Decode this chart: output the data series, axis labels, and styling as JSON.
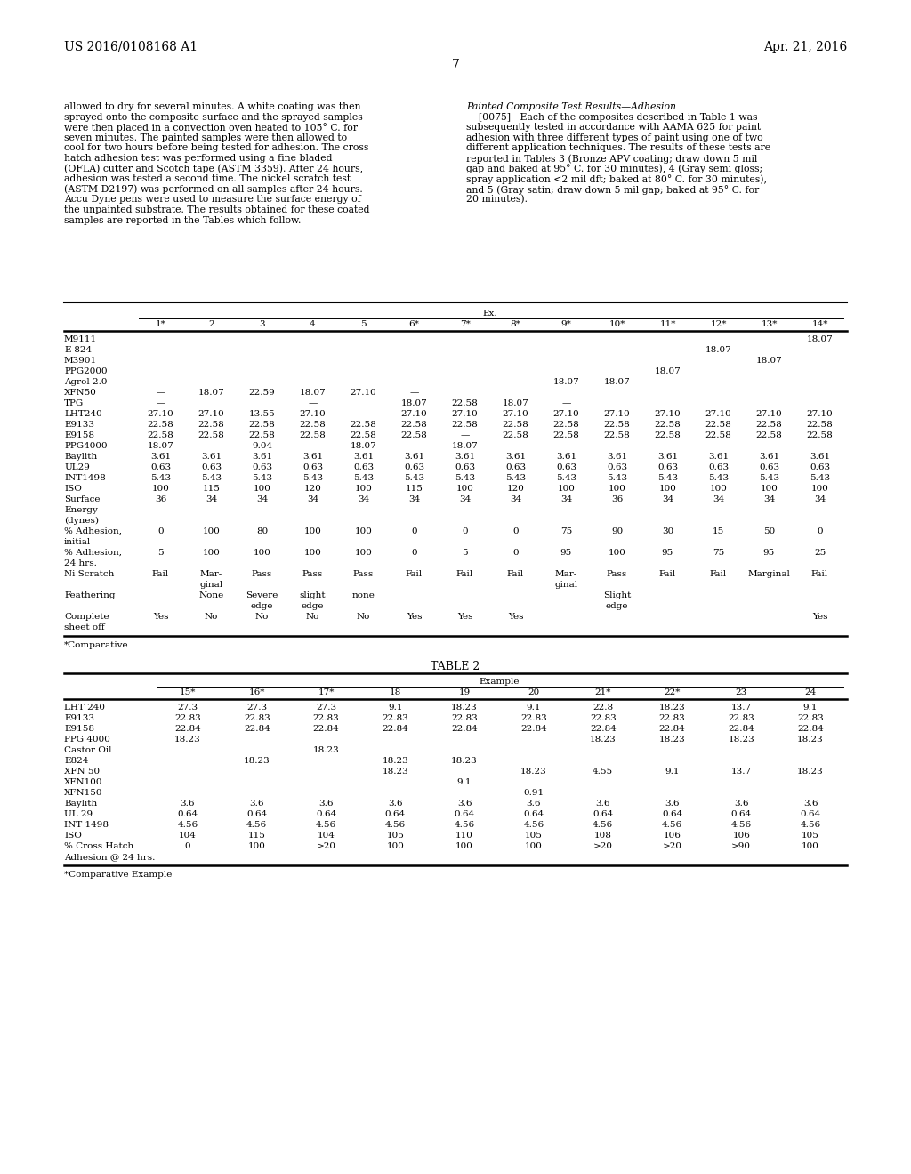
{
  "background_color": "#ffffff",
  "header_left": "US 2016/0108168 A1",
  "header_right": "Apr. 21, 2016",
  "page_number": "7",
  "left_para_lines": [
    "allowed to dry for several minutes. A white coating was then",
    "sprayed onto the composite surface and the sprayed samples",
    "were then placed in a convection oven heated to 105° C. for",
    "seven minutes. The painted samples were then allowed to",
    "cool for two hours before being tested for adhesion. The cross",
    "hatch adhesion test was performed using a fine bladed",
    "(OFLA) cutter and Scotch tape (ASTM 3359). After 24 hours,",
    "adhesion was tested a second time. The nickel scratch test",
    "(ASTM D2197) was performed on all samples after 24 hours.",
    "Accu Dyne pens were used to measure the surface energy of",
    "the unpainted substrate. The results obtained for these coated",
    "samples are reported in the Tables which follow."
  ],
  "right_heading": "Painted Composite Test Results—Adhesion",
  "right_para_lines": [
    "    [0075]   Each of the composites described in Table 1 was",
    "subsequently tested in accordance with AAMA 625 for paint",
    "adhesion with three different types of paint using one of two",
    "different application techniques. The results of these tests are",
    "reported in Tables 3 (Bronze APV coating; draw down 5 mil",
    "gap and baked at 95° C. for 30 minutes), 4 (Gray semi gloss;",
    "spray application <2 mil dft; baked at 80° C. for 30 minutes),",
    "and 5 (Gray satin; draw down 5 mil gap; baked at 95° C. for",
    "20 minutes)."
  ],
  "table1_columns": [
    "1*",
    "2",
    "3",
    "4",
    "5",
    "6*",
    "7*",
    "8*",
    "9*",
    "10*",
    "11*",
    "12*",
    "13*",
    "14*"
  ],
  "table1_rows": [
    [
      "M9111",
      "",
      "",
      "",
      "",
      "",
      "",
      "",
      "",
      "",
      "",
      "",
      "",
      "",
      "18.07"
    ],
    [
      "E-824",
      "",
      "",
      "",
      "",
      "",
      "",
      "",
      "",
      "",
      "",
      "",
      "18.07",
      "",
      ""
    ],
    [
      "M3901",
      "",
      "",
      "",
      "",
      "",
      "",
      "",
      "",
      "",
      "",
      "",
      "",
      "18.07",
      ""
    ],
    [
      "PPG2000",
      "",
      "",
      "",
      "",
      "",
      "",
      "",
      "",
      "",
      "",
      "18.07",
      "",
      "",
      ""
    ],
    [
      "Agrol 2.0",
      "",
      "",
      "",
      "",
      "",
      "",
      "",
      "",
      "18.07",
      "18.07",
      "",
      "",
      "",
      ""
    ],
    [
      "XFN50",
      "—",
      "18.07",
      "22.59",
      "18.07",
      "27.10",
      "—",
      "",
      "",
      "",
      "",
      "",
      "",
      "",
      ""
    ],
    [
      "TPG",
      "—",
      "",
      "",
      "—",
      "",
      "18.07",
      "22.58",
      "18.07",
      "—",
      "",
      "",
      "",
      "",
      ""
    ],
    [
      "LHT240",
      "27.10",
      "27.10",
      "13.55",
      "27.10",
      "—",
      "27.10",
      "27.10",
      "27.10",
      "27.10",
      "27.10",
      "27.10",
      "27.10",
      "27.10",
      "27.10"
    ],
    [
      "E9133",
      "22.58",
      "22.58",
      "22.58",
      "22.58",
      "22.58",
      "22.58",
      "22.58",
      "22.58",
      "22.58",
      "22.58",
      "22.58",
      "22.58",
      "22.58",
      "22.58"
    ],
    [
      "E9158",
      "22.58",
      "22.58",
      "22.58",
      "22.58",
      "22.58",
      "22.58",
      "—",
      "22.58",
      "22.58",
      "22.58",
      "22.58",
      "22.58",
      "22.58",
      "22.58"
    ],
    [
      "PPG4000",
      "18.07",
      "—",
      "9.04",
      "—",
      "18.07",
      "—",
      "18.07",
      "—",
      "",
      "",
      "",
      "",
      "",
      ""
    ],
    [
      "Baylith",
      "3.61",
      "3.61",
      "3.61",
      "3.61",
      "3.61",
      "3.61",
      "3.61",
      "3.61",
      "3.61",
      "3.61",
      "3.61",
      "3.61",
      "3.61",
      "3.61"
    ],
    [
      "UL29",
      "0.63",
      "0.63",
      "0.63",
      "0.63",
      "0.63",
      "0.63",
      "0.63",
      "0.63",
      "0.63",
      "0.63",
      "0.63",
      "0.63",
      "0.63",
      "0.63"
    ],
    [
      "INT1498",
      "5.43",
      "5.43",
      "5.43",
      "5.43",
      "5.43",
      "5.43",
      "5.43",
      "5.43",
      "5.43",
      "5.43",
      "5.43",
      "5.43",
      "5.43",
      "5.43"
    ],
    [
      "ISO",
      "100",
      "115",
      "100",
      "120",
      "100",
      "115",
      "100",
      "120",
      "100",
      "100",
      "100",
      "100",
      "100",
      "100"
    ],
    [
      "Surface",
      "36",
      "34",
      "34",
      "34",
      "34",
      "34",
      "34",
      "34",
      "34",
      "36",
      "34",
      "34",
      "34",
      "34"
    ],
    [
      "Energy",
      "",
      "",
      "",
      "",
      "",
      "",
      "",
      "",
      "",
      "",
      "",
      "",
      "",
      ""
    ],
    [
      "(dynes)",
      "",
      "",
      "",
      "",
      "",
      "",
      "",
      "",
      "",
      "",
      "",
      "",
      "",
      ""
    ],
    [
      "% Adhesion,",
      "0",
      "100",
      "80",
      "100",
      "100",
      "0",
      "0",
      "0",
      "75",
      "90",
      "30",
      "15",
      "50",
      "0"
    ],
    [
      "initial",
      "",
      "",
      "",
      "",
      "",
      "",
      "",
      "",
      "",
      "",
      "",
      "",
      "",
      ""
    ],
    [
      "% Adhesion,",
      "5",
      "100",
      "100",
      "100",
      "100",
      "0",
      "5",
      "0",
      "95",
      "100",
      "95",
      "75",
      "95",
      "25"
    ],
    [
      "24 hrs.",
      "",
      "",
      "",
      "",
      "",
      "",
      "",
      "",
      "",
      "",
      "",
      "",
      "",
      ""
    ],
    [
      "Ni Scratch",
      "Fail",
      "Mar-",
      "Pass",
      "Pass",
      "Pass",
      "Fail",
      "Fail",
      "Fail",
      "Mar-",
      "Pass",
      "Fail",
      "Fail",
      "Marginal",
      "Fail"
    ],
    [
      "",
      "",
      "ginal",
      "",
      "",
      "",
      "",
      "",
      "",
      "ginal",
      "",
      "",
      "",
      "",
      ""
    ],
    [
      "Feathering",
      "",
      "None",
      "Severe",
      "slight",
      "none",
      "",
      "",
      "",
      "",
      "Slight",
      "",
      "",
      "",
      ""
    ],
    [
      "",
      "",
      "",
      "edge",
      "edge",
      "",
      "",
      "",
      "",
      "",
      "edge",
      "",
      "",
      "",
      ""
    ],
    [
      "Complete",
      "Yes",
      "No",
      "No",
      "No",
      "No",
      "Yes",
      "Yes",
      "Yes",
      "",
      "",
      "",
      "",
      "",
      "Yes"
    ],
    [
      "sheet off",
      "",
      "",
      "",
      "",
      "",
      "",
      "",
      "",
      "",
      "",
      "",
      "",
      "",
      ""
    ]
  ],
  "table1_note": "*Comparative",
  "table2_title": "TABLE 2",
  "table2_columns": [
    "15*",
    "16*",
    "17*",
    "18",
    "19",
    "20",
    "21*",
    "22*",
    "23",
    "24"
  ],
  "table2_rows": [
    [
      "LHT 240",
      "27.3",
      "27.3",
      "27.3",
      "9.1",
      "18.23",
      "9.1",
      "22.8",
      "18.23",
      "13.7",
      "9.1"
    ],
    [
      "E9133",
      "22.83",
      "22.83",
      "22.83",
      "22.83",
      "22.83",
      "22.83",
      "22.83",
      "22.83",
      "22.83",
      "22.83"
    ],
    [
      "E9158",
      "22.84",
      "22.84",
      "22.84",
      "22.84",
      "22.84",
      "22.84",
      "22.84",
      "22.84",
      "22.84",
      "22.84"
    ],
    [
      "PPG 4000",
      "18.23",
      "",
      "",
      "",
      "",
      "",
      "18.23",
      "18.23",
      "18.23",
      "18.23"
    ],
    [
      "Castor Oil",
      "",
      "",
      "18.23",
      "",
      "",
      "",
      "",
      "",
      "",
      ""
    ],
    [
      "E824",
      "",
      "18.23",
      "",
      "18.23",
      "18.23",
      "",
      "",
      "",
      "",
      ""
    ],
    [
      "XFN 50",
      "",
      "",
      "",
      "18.23",
      "",
      "18.23",
      "4.55",
      "9.1",
      "13.7",
      "18.23"
    ],
    [
      "XFN100",
      "",
      "",
      "",
      "",
      "9.1",
      "",
      "",
      "",
      "",
      ""
    ],
    [
      "XFN150",
      "",
      "",
      "",
      "",
      "",
      "0.91",
      "",
      "",
      "",
      ""
    ],
    [
      "Baylith",
      "3.6",
      "3.6",
      "3.6",
      "3.6",
      "3.6",
      "3.6",
      "3.6",
      "3.6",
      "3.6",
      "3.6"
    ],
    [
      "UL 29",
      "0.64",
      "0.64",
      "0.64",
      "0.64",
      "0.64",
      "0.64",
      "0.64",
      "0.64",
      "0.64",
      "0.64"
    ],
    [
      "INT 1498",
      "4.56",
      "4.56",
      "4.56",
      "4.56",
      "4.56",
      "4.56",
      "4.56",
      "4.56",
      "4.56",
      "4.56"
    ],
    [
      "ISO",
      "104",
      "115",
      "104",
      "105",
      "110",
      "105",
      "108",
      "106",
      "106",
      "105"
    ],
    [
      "% Cross Hatch",
      "0",
      "100",
      ">20",
      "100",
      "100",
      "100",
      ">20",
      ">20",
      ">90",
      "100"
    ],
    [
      "Adhesion @ 24 hrs.",
      "",
      "",
      "",
      "",
      "",
      "",
      "",
      "",
      "",
      ""
    ]
  ],
  "table2_note": "*Comparative Example"
}
